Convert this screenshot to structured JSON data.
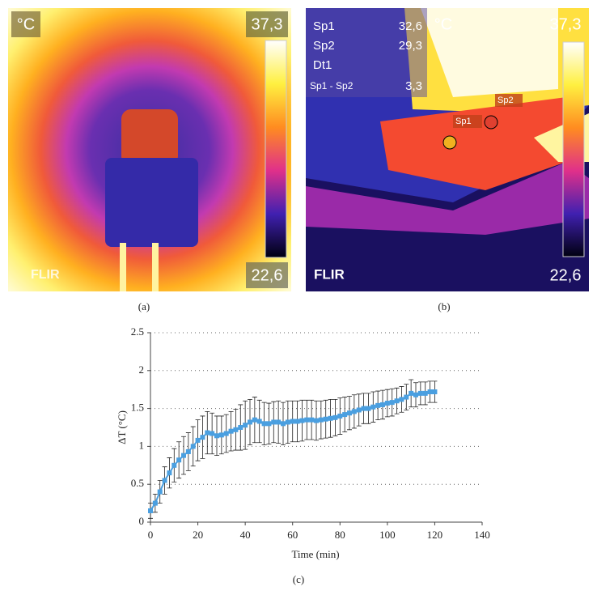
{
  "panels": [
    {
      "label": "(a)",
      "unit": "°C",
      "max": "37,3",
      "min": "22,6",
      "logo": "FLIR"
    },
    {
      "label": "(b)",
      "unit": "°C",
      "max": "37,3",
      "min": "22,6",
      "logo": "FLIR",
      "readings": [
        [
          "Sp1",
          "32,6"
        ],
        [
          "Sp2",
          "29,3"
        ],
        [
          "Dt1"
        ],
        [
          "Sp1 - Sp2",
          "3,3"
        ]
      ],
      "spots": [
        "Sp1",
        "Sp2"
      ]
    }
  ],
  "chart_data": {
    "type": "errorline",
    "caption": "(c)",
    "xlabel": "Time (min)",
    "ylabel": "ΔT (°C)",
    "color": "#4a9fe0",
    "grid": true,
    "xlim": [
      0,
      140
    ],
    "xticks": [
      0,
      20,
      40,
      60,
      80,
      100,
      120,
      140
    ],
    "ylim": [
      0,
      2.5
    ],
    "yticks": [
      0,
      0.5,
      1,
      1.5,
      2,
      2.5
    ],
    "x": [
      0,
      2,
      4,
      6,
      8,
      10,
      12,
      14,
      16,
      18,
      20,
      22,
      24,
      26,
      28,
      30,
      32,
      34,
      36,
      38,
      40,
      42,
      44,
      46,
      48,
      50,
      52,
      54,
      56,
      58,
      60,
      62,
      64,
      66,
      68,
      70,
      72,
      74,
      76,
      78,
      80,
      82,
      84,
      86,
      88,
      90,
      92,
      94,
      96,
      98,
      100,
      102,
      104,
      106,
      108,
      110,
      112,
      114,
      116,
      118,
      120
    ],
    "values": [
      0.15,
      0.25,
      0.4,
      0.55,
      0.65,
      0.75,
      0.82,
      0.88,
      0.93,
      1.0,
      1.08,
      1.12,
      1.18,
      1.17,
      1.14,
      1.15,
      1.17,
      1.2,
      1.22,
      1.25,
      1.28,
      1.32,
      1.35,
      1.33,
      1.3,
      1.3,
      1.32,
      1.32,
      1.3,
      1.32,
      1.33,
      1.33,
      1.34,
      1.35,
      1.35,
      1.34,
      1.35,
      1.36,
      1.37,
      1.38,
      1.4,
      1.42,
      1.44,
      1.46,
      1.48,
      1.5,
      1.5,
      1.52,
      1.54,
      1.55,
      1.57,
      1.58,
      1.6,
      1.62,
      1.65,
      1.7,
      1.68,
      1.7,
      1.7,
      1.72,
      1.72
    ],
    "errors": [
      0.1,
      0.12,
      0.15,
      0.18,
      0.2,
      0.22,
      0.24,
      0.25,
      0.25,
      0.26,
      0.27,
      0.28,
      0.28,
      0.27,
      0.26,
      0.25,
      0.25,
      0.26,
      0.27,
      0.3,
      0.32,
      0.3,
      0.3,
      0.28,
      0.28,
      0.27,
      0.27,
      0.28,
      0.28,
      0.28,
      0.27,
      0.27,
      0.27,
      0.26,
      0.26,
      0.26,
      0.25,
      0.25,
      0.25,
      0.24,
      0.24,
      0.23,
      0.22,
      0.22,
      0.21,
      0.2,
      0.2,
      0.2,
      0.19,
      0.19,
      0.18,
      0.18,
      0.17,
      0.17,
      0.17,
      0.18,
      0.16,
      0.15,
      0.15,
      0.14,
      0.14
    ]
  }
}
